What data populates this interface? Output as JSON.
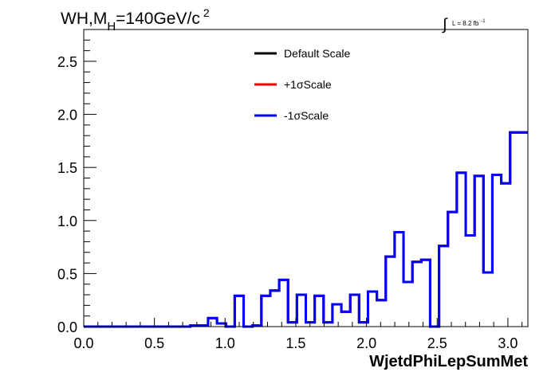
{
  "chart_data": {
    "type": "line",
    "title": {
      "main": "WH,M",
      "sub": "H",
      "rest": "=140GeV/c",
      "sup": "2"
    },
    "lumi_label": {
      "integral": "∫",
      "text": "L = 8.2 fb",
      "sup": "-1"
    },
    "xlabel": "WjetdPhiLepSumMet",
    "ylabel": "",
    "xlim": [
      0.0,
      3.1416
    ],
    "ylim": [
      0.0,
      2.8
    ],
    "xticks": [
      "0.0",
      "0.5",
      "1.0",
      "1.5",
      "2.0",
      "2.5",
      "3.0"
    ],
    "xtick_values": [
      0.0,
      0.5,
      1.0,
      1.5,
      2.0,
      2.5,
      3.0
    ],
    "yticks": [
      "0.0",
      "0.5",
      "1.0",
      "1.5",
      "2.0",
      "2.5"
    ],
    "ytick_values": [
      0.0,
      0.5,
      1.0,
      1.5,
      2.0,
      2.5
    ],
    "legend_position": "top-center",
    "bin_edges": [
      0.0,
      0.0628,
      0.1257,
      0.1885,
      0.2513,
      0.3142,
      0.377,
      0.4398,
      0.5027,
      0.5655,
      0.6283,
      0.6912,
      0.754,
      0.8168,
      0.8796,
      0.9425,
      1.0053,
      1.0681,
      1.131,
      1.1938,
      1.2566,
      1.3195,
      1.3823,
      1.4451,
      1.508,
      1.5708,
      1.6336,
      1.6965,
      1.7593,
      1.8221,
      1.885,
      1.9478,
      2.0106,
      2.0735,
      2.1363,
      2.1991,
      2.2619,
      2.3248,
      2.3876,
      2.4504,
      2.5133,
      2.5761,
      2.6389,
      2.7018,
      2.7646,
      2.8274,
      2.8903,
      2.9531,
      3.0159,
      3.0788,
      3.1416
    ],
    "series": [
      {
        "name": "Default Scale",
        "color": "#000000",
        "values": [
          0,
          0,
          0,
          0,
          0,
          0,
          0,
          0,
          0,
          0,
          0,
          0,
          0.01,
          0.01,
          0.08,
          0.03,
          0.0,
          0.29,
          0.0,
          0.01,
          0.29,
          0.34,
          0.44,
          0.04,
          0.3,
          0.04,
          0.29,
          0.04,
          0.21,
          0.14,
          0.3,
          0.04,
          0.33,
          0.25,
          0.66,
          0.89,
          0.42,
          0.61,
          0.63,
          0.0,
          0.76,
          1.08,
          1.45,
          0.86,
          1.42,
          0.51,
          1.43,
          1.35,
          1.83,
          1.83
        ]
      },
      {
        "name": "+1σScale",
        "color": "#ff0000",
        "values": [
          0,
          0,
          0,
          0,
          0,
          0,
          0,
          0,
          0,
          0,
          0,
          0,
          0.01,
          0.01,
          0.08,
          0.03,
          0.0,
          0.29,
          0.0,
          0.01,
          0.29,
          0.34,
          0.44,
          0.04,
          0.3,
          0.04,
          0.29,
          0.04,
          0.21,
          0.14,
          0.3,
          0.04,
          0.33,
          0.25,
          0.66,
          0.89,
          0.42,
          0.61,
          0.63,
          0.0,
          0.76,
          1.08,
          1.45,
          0.86,
          1.42,
          0.51,
          1.43,
          1.35,
          1.83,
          1.83
        ]
      },
      {
        "name": "-1σScale",
        "color": "#0000ff",
        "values": [
          0,
          0,
          0,
          0,
          0,
          0,
          0,
          0,
          0,
          0,
          0,
          0,
          0.01,
          0.01,
          0.08,
          0.03,
          0.0,
          0.29,
          0.0,
          0.01,
          0.29,
          0.34,
          0.44,
          0.04,
          0.3,
          0.04,
          0.29,
          0.04,
          0.21,
          0.14,
          0.3,
          0.04,
          0.33,
          0.25,
          0.66,
          0.89,
          0.42,
          0.61,
          0.63,
          0.0,
          0.76,
          1.08,
          1.45,
          0.86,
          1.42,
          0.51,
          1.43,
          1.35,
          1.83,
          1.83
        ]
      }
    ]
  }
}
